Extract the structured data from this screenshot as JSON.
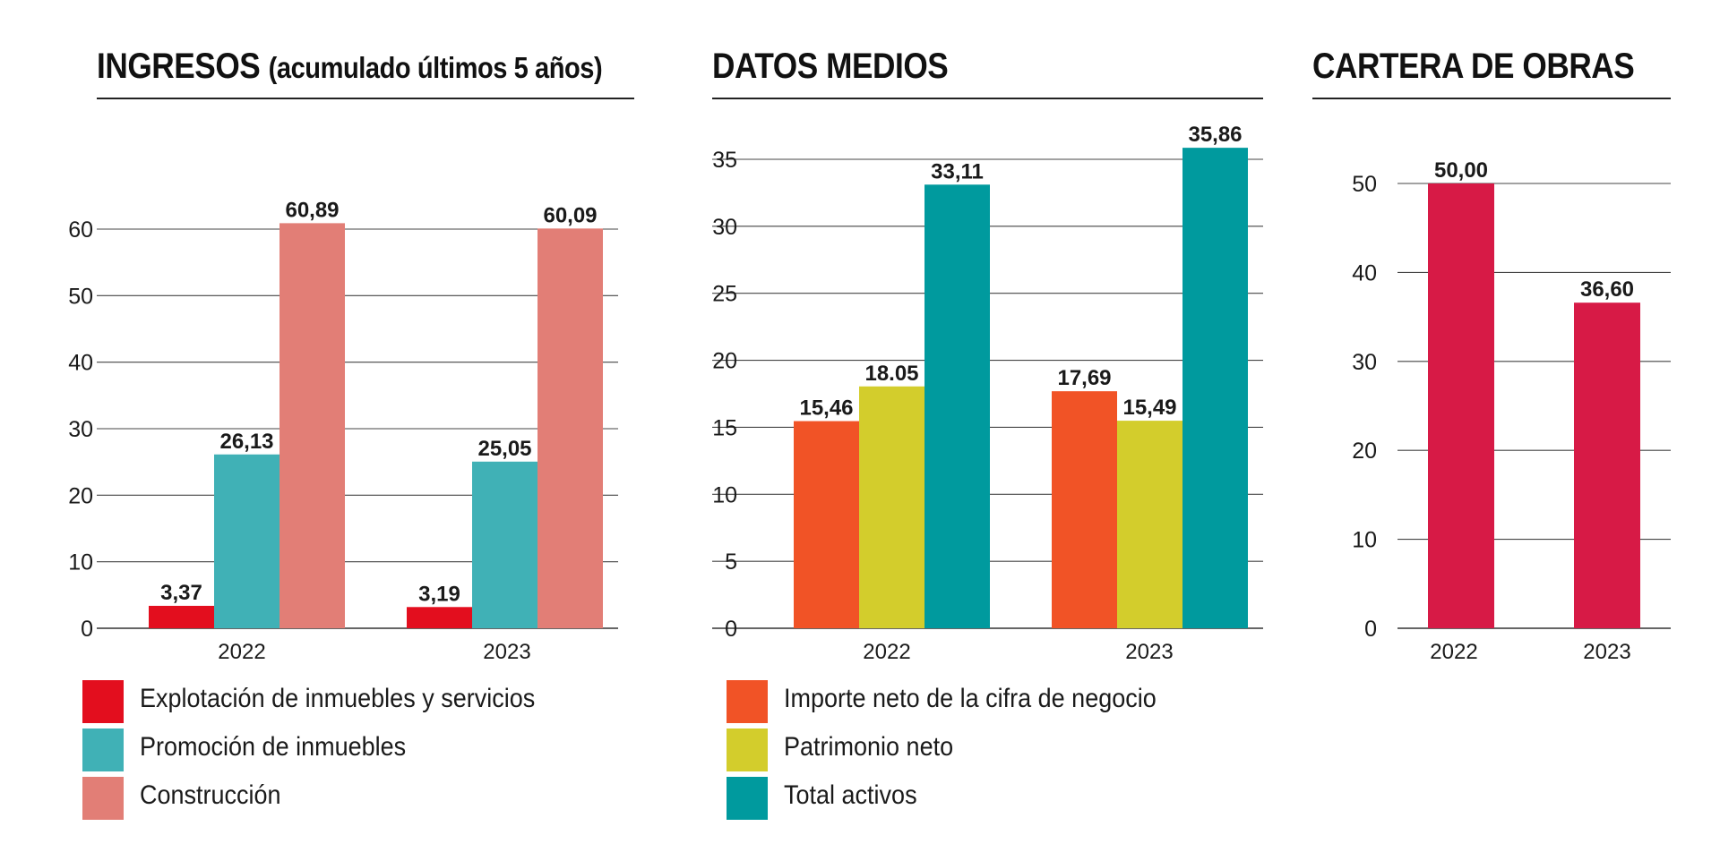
{
  "chart_data": [
    {
      "type": "bar",
      "title": "INGRESOS",
      "subtitle": "(acumulado últimos 5 años)",
      "categories": [
        "2022",
        "2023"
      ],
      "series": [
        {
          "name": "Explotación de inmuebles y servicios",
          "values": [
            3.37,
            3.19
          ],
          "labels": [
            "3,37",
            "3,19"
          ],
          "color": "#e30e1e"
        },
        {
          "name": "Promoción de inmuebles",
          "values": [
            26.13,
            25.05
          ],
          "labels": [
            "26,13",
            "25,05"
          ],
          "color": "#40b1b6"
        },
        {
          "name": "Construcción",
          "values": [
            60.89,
            60.09
          ],
          "labels": [
            "60,89",
            "60,09"
          ],
          "color": "#e27e76"
        }
      ],
      "yticks": [
        0,
        10,
        20,
        30,
        40,
        50,
        60
      ],
      "ylim": [
        0,
        60
      ],
      "grid": true,
      "legend": "bottom-left"
    },
    {
      "type": "bar",
      "title": "DATOS MEDIOS",
      "subtitle": "",
      "categories": [
        "2022",
        "2023"
      ],
      "series": [
        {
          "name": "Importe neto de la cifra de negocio",
          "values": [
            15.46,
            17.69
          ],
          "labels": [
            "15,46",
            "17,69"
          ],
          "color": "#f15326"
        },
        {
          "name": "Patrimonio neto",
          "values": [
            18.05,
            15.49
          ],
          "labels": [
            "18.05",
            "15,49"
          ],
          "color": "#d3cd2c"
        },
        {
          "name": "Total activos",
          "values": [
            33.11,
            35.86
          ],
          "labels": [
            "33,11",
            "35,86"
          ],
          "color": "#009a9e"
        }
      ],
      "yticks": [
        0,
        5,
        10,
        15,
        20,
        25,
        30,
        35
      ],
      "ylim": [
        0,
        35
      ],
      "grid": true,
      "legend": "bottom-left"
    },
    {
      "type": "bar",
      "title": "CARTERA DE OBRAS",
      "subtitle": "",
      "categories": [
        "2022",
        "2023"
      ],
      "series": [
        {
          "name": "",
          "values": [
            50.0,
            36.6
          ],
          "labels": [
            "50,00",
            "36,60"
          ],
          "color": "#d71a46"
        }
      ],
      "yticks": [
        0,
        10,
        20,
        30,
        40,
        50
      ],
      "ylim": [
        0,
        50
      ],
      "grid": true,
      "legend": "none"
    }
  ]
}
